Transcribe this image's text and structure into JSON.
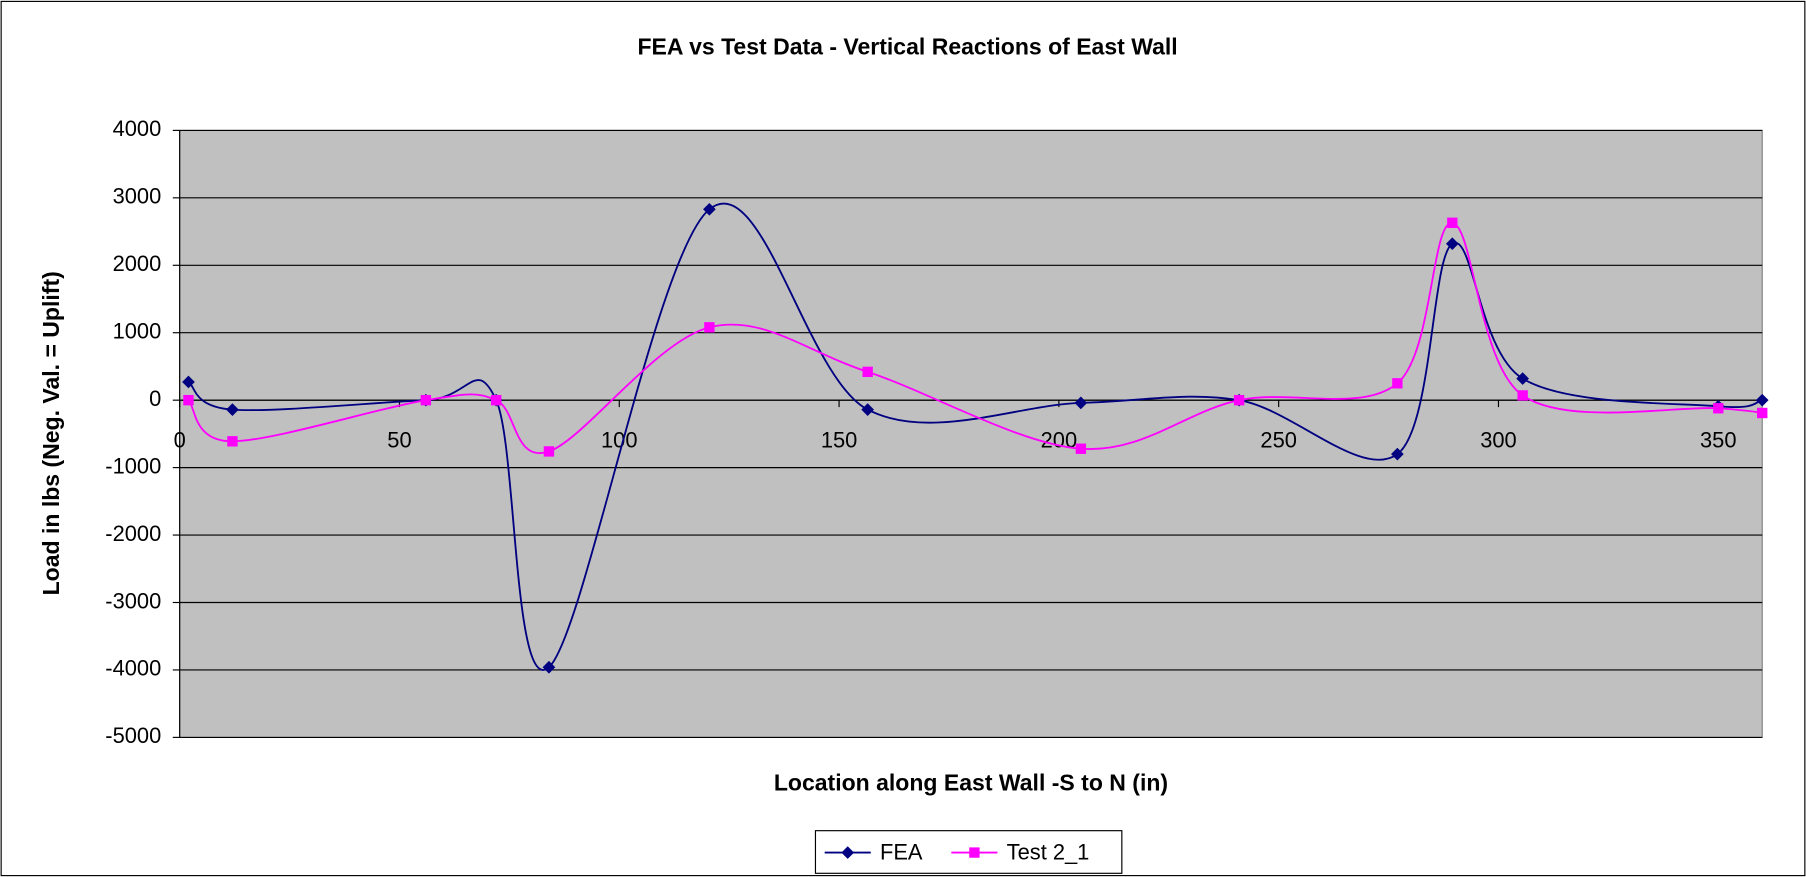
{
  "chart_data": {
    "type": "line",
    "title": "FEA vs Test Data - Vertical Reactions of East Wall",
    "xlabel": "Location along East Wall -S to N (in)",
    "ylabel": "Load in lbs (Neg. Val. = Uplift)",
    "x": [
      2,
      12,
      56,
      72,
      84,
      120.5,
      156.5,
      205,
      241,
      277,
      289.5,
      305.5,
      350,
      360
    ],
    "series": [
      {
        "name": "FEA",
        "color": "#000080",
        "marker": "diamond",
        "values": [
          270,
          -140,
          0,
          0,
          -3960,
          2830,
          -140,
          -40,
          0,
          -800,
          2320,
          320,
          -90,
          0
        ]
      },
      {
        "name": "Test 2_1",
        "color": "#ff00ff",
        "marker": "square",
        "values": [
          0,
          -610,
          0,
          0,
          -760,
          1080,
          420,
          -720,
          0,
          250,
          2630,
          70,
          -120,
          -190
        ]
      }
    ],
    "xlim": [
      0,
      360
    ],
    "xticks": [
      0,
      50,
      100,
      150,
      200,
      250,
      300,
      350
    ],
    "ylim": [
      -5000,
      4000
    ],
    "yticks": [
      -5000,
      -4000,
      -3000,
      -2000,
      -1000,
      0,
      1000,
      2000,
      3000,
      4000
    ],
    "grid": true,
    "smooth": true,
    "legend": "bottom"
  }
}
